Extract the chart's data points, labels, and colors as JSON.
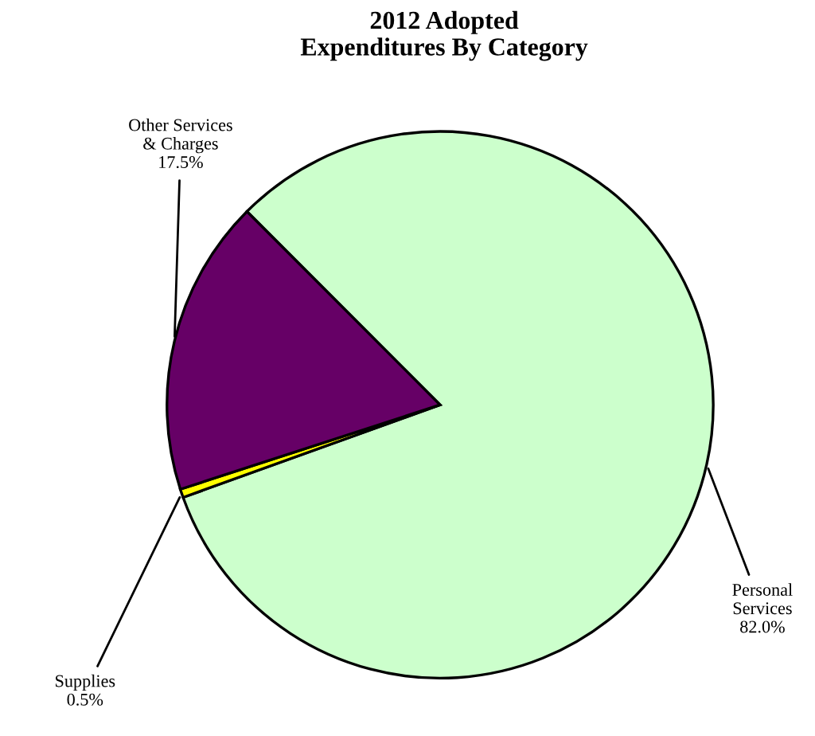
{
  "chart_data": {
    "type": "pie",
    "title": "2012 Adopted\nExpenditures By Category",
    "categories": [
      "Personal\nServices",
      "Supplies",
      "Other Services\n& Charges"
    ],
    "values": [
      82.0,
      0.5,
      17.5
    ],
    "value_labels": [
      "82.0%",
      "0.5%",
      "17.5%"
    ],
    "colors": [
      "#ccffcc",
      "#ffff00",
      "#660066"
    ]
  }
}
